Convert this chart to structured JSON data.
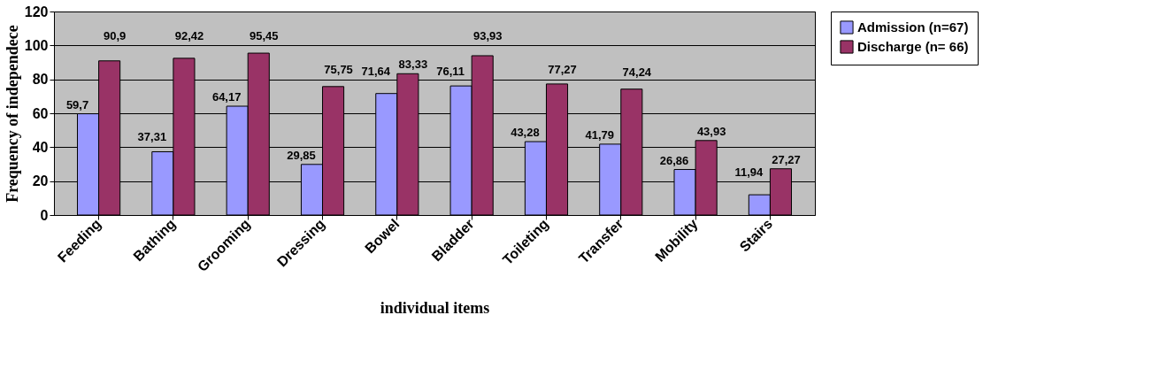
{
  "chart_data": {
    "type": "bar",
    "xlabel": "individual items",
    "ylabel": "Frequency of independece",
    "categories": [
      "Feeding",
      "Bathing",
      "Grooming",
      "Dressing",
      "Bowel",
      "Bladder",
      "Toileting",
      "Transfer",
      "Mobility",
      "Stairs"
    ],
    "series": [
      {
        "name": "Admission (n=67)",
        "color": "#9999ff",
        "values": [
          59.7,
          37.31,
          64.17,
          29.85,
          71.64,
          76.11,
          43.28,
          41.79,
          26.86,
          11.94
        ],
        "value_labels": [
          "59,7",
          "37,31",
          "64,17",
          "29,85",
          "71,64",
          "76,11",
          "43,28",
          "41,79",
          "26,86",
          "11,94"
        ]
      },
      {
        "name": "Discharge (n= 66)",
        "color": "#993366",
        "values": [
          90.9,
          92.42,
          95.45,
          75.75,
          83.33,
          93.93,
          77.27,
          74.24,
          43.93,
          27.27
        ],
        "value_labels": [
          "90,9",
          "92,42",
          "95,45",
          "75,75",
          "83,33",
          "93,93",
          "77,27",
          "74,24",
          "43,93",
          "27,27"
        ]
      }
    ],
    "ylim": [
      0,
      120
    ],
    "yticks": [
      0,
      20,
      40,
      60,
      80,
      100,
      120
    ],
    "grid": "y",
    "legend": "right"
  }
}
